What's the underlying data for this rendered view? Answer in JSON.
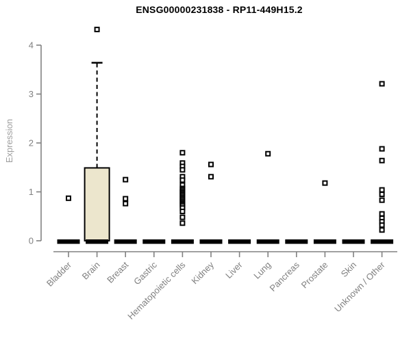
{
  "chart_data": {
    "type": "boxplot",
    "title": "ENSG00000231838 - RP11-449H15.2",
    "ylabel": "Expression",
    "xlabel": "",
    "ylim": [
      0,
      4.45
    ],
    "yticks": [
      0,
      1,
      2,
      3,
      4
    ],
    "grid": false,
    "legend": false,
    "categories": [
      "Bladder",
      "Brain",
      "Breast",
      "Gastric",
      "Hematopoietic cells",
      "Kidney",
      "Liver",
      "Lung",
      "Pancreas",
      "Prostate",
      "Skin",
      "Unknown / Other"
    ],
    "series": [
      {
        "category": "Bladder",
        "q1": 0,
        "median": 0,
        "q3": 0,
        "whisker_low": 0,
        "whisker_high": 0,
        "outliers": [
          0.87
        ]
      },
      {
        "category": "Brain",
        "q1": 0,
        "median": 0,
        "q3": 1.49,
        "whisker_low": 0,
        "whisker_high": 3.64,
        "outliers": [
          4.32
        ]
      },
      {
        "category": "Breast",
        "q1": 0,
        "median": 0,
        "q3": 0,
        "whisker_low": 0,
        "whisker_high": 0,
        "outliers": [
          1.25,
          0.86,
          0.76
        ]
      },
      {
        "category": "Gastric",
        "q1": 0,
        "median": 0,
        "q3": 0,
        "whisker_low": 0,
        "whisker_high": 0,
        "outliers": []
      },
      {
        "category": "Hematopoietic cells",
        "q1": 0,
        "median": 0,
        "q3": 0,
        "whisker_low": 0,
        "whisker_high": 0,
        "outliers": [
          1.8,
          1.59,
          1.52,
          1.45,
          1.31,
          1.24,
          1.14,
          1.07,
          1.04,
          1.01,
          0.98,
          0.95,
          0.92,
          0.89,
          0.86,
          0.83,
          0.8,
          0.77,
          0.74,
          0.71,
          0.67,
          0.6,
          0.48,
          0.36
        ]
      },
      {
        "category": "Kidney",
        "q1": 0,
        "median": 0,
        "q3": 0,
        "whisker_low": 0,
        "whisker_high": 0,
        "outliers": [
          1.56,
          1.31
        ]
      },
      {
        "category": "Liver",
        "q1": 0,
        "median": 0,
        "q3": 0,
        "whisker_low": 0,
        "whisker_high": 0,
        "outliers": []
      },
      {
        "category": "Lung",
        "q1": 0,
        "median": 0,
        "q3": 0,
        "whisker_low": 0,
        "whisker_high": 0,
        "outliers": [
          1.78
        ]
      },
      {
        "category": "Pancreas",
        "q1": 0,
        "median": 0,
        "q3": 0,
        "whisker_low": 0,
        "whisker_high": 0,
        "outliers": []
      },
      {
        "category": "Prostate",
        "q1": 0,
        "median": 0,
        "q3": 0,
        "whisker_low": 0,
        "whisker_high": 0,
        "outliers": [
          1.18
        ]
      },
      {
        "category": "Skin",
        "q1": 0,
        "median": 0,
        "q3": 0,
        "whisker_low": 0,
        "whisker_high": 0,
        "outliers": []
      },
      {
        "category": "Unknown / Other",
        "q1": 0,
        "median": 0,
        "q3": 0,
        "whisker_low": 0,
        "whisker_high": 0,
        "outliers": [
          3.21,
          1.88,
          1.64,
          1.04,
          0.95,
          0.83,
          0.55,
          0.46,
          0.39,
          0.32,
          0.22
        ]
      }
    ],
    "colors": {
      "background": "#ffffff",
      "box_fill": "#ece6cd",
      "box_stroke": "#000000",
      "median": "#000000",
      "whisker": "#000000",
      "outlier_stroke": "#000000",
      "outlier_fill": "#ffffff",
      "axis": "#808080",
      "tick_label": "#808080",
      "category_label": "#808080",
      "ylabel": "#9e9e9e",
      "title": "#000000"
    }
  }
}
